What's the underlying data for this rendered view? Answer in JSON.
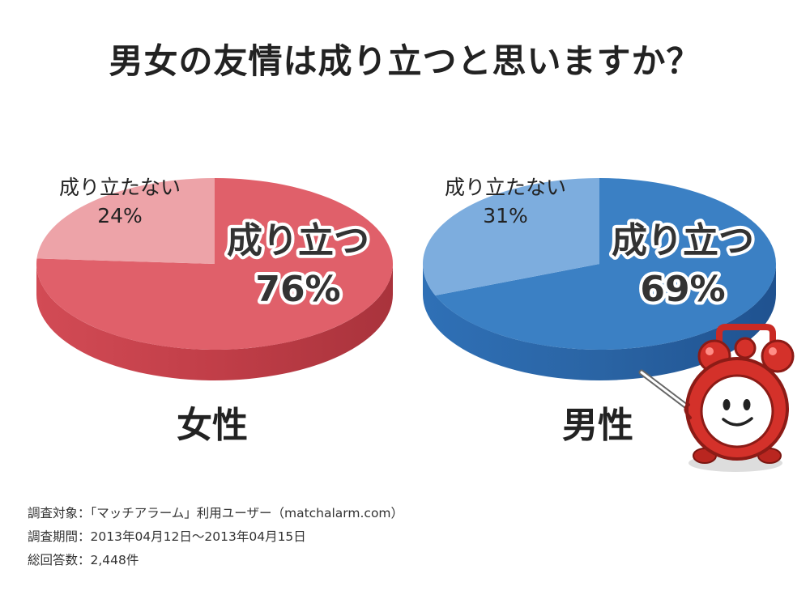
{
  "title": "男女の友情は成り立つと思いますか？",
  "chart_data": [
    {
      "type": "pie",
      "title": "女性",
      "slices": [
        {
          "label": "成り立つ",
          "value": 76,
          "value_text": "76%",
          "color": "#e0606a",
          "side_color": "#c2454f"
        },
        {
          "label": "成り立たない",
          "value": 24,
          "value_text": "24%",
          "color": "#eda3a8",
          "side_color": "#d88a90"
        }
      ]
    },
    {
      "type": "pie",
      "title": "男性",
      "slices": [
        {
          "label": "成り立つ",
          "value": 69,
          "value_text": "69%",
          "color": "#3b80c4",
          "side_color": "#2a66a6"
        },
        {
          "label": "成り立たない",
          "value": 31,
          "value_text": "31%",
          "color": "#7dadde",
          "side_color": "#6296cc"
        }
      ]
    }
  ],
  "footer": {
    "target": "調査対象：「マッチアラーム」利用ユーザー（matchalarm.com）",
    "period": "調査期間：2013年04月12日〜2013年04月15日",
    "responses": "総回答数：2,448件"
  },
  "mascot": {
    "icon": "alarm-clock-mascot-icon",
    "body_color": "#d4312a"
  }
}
